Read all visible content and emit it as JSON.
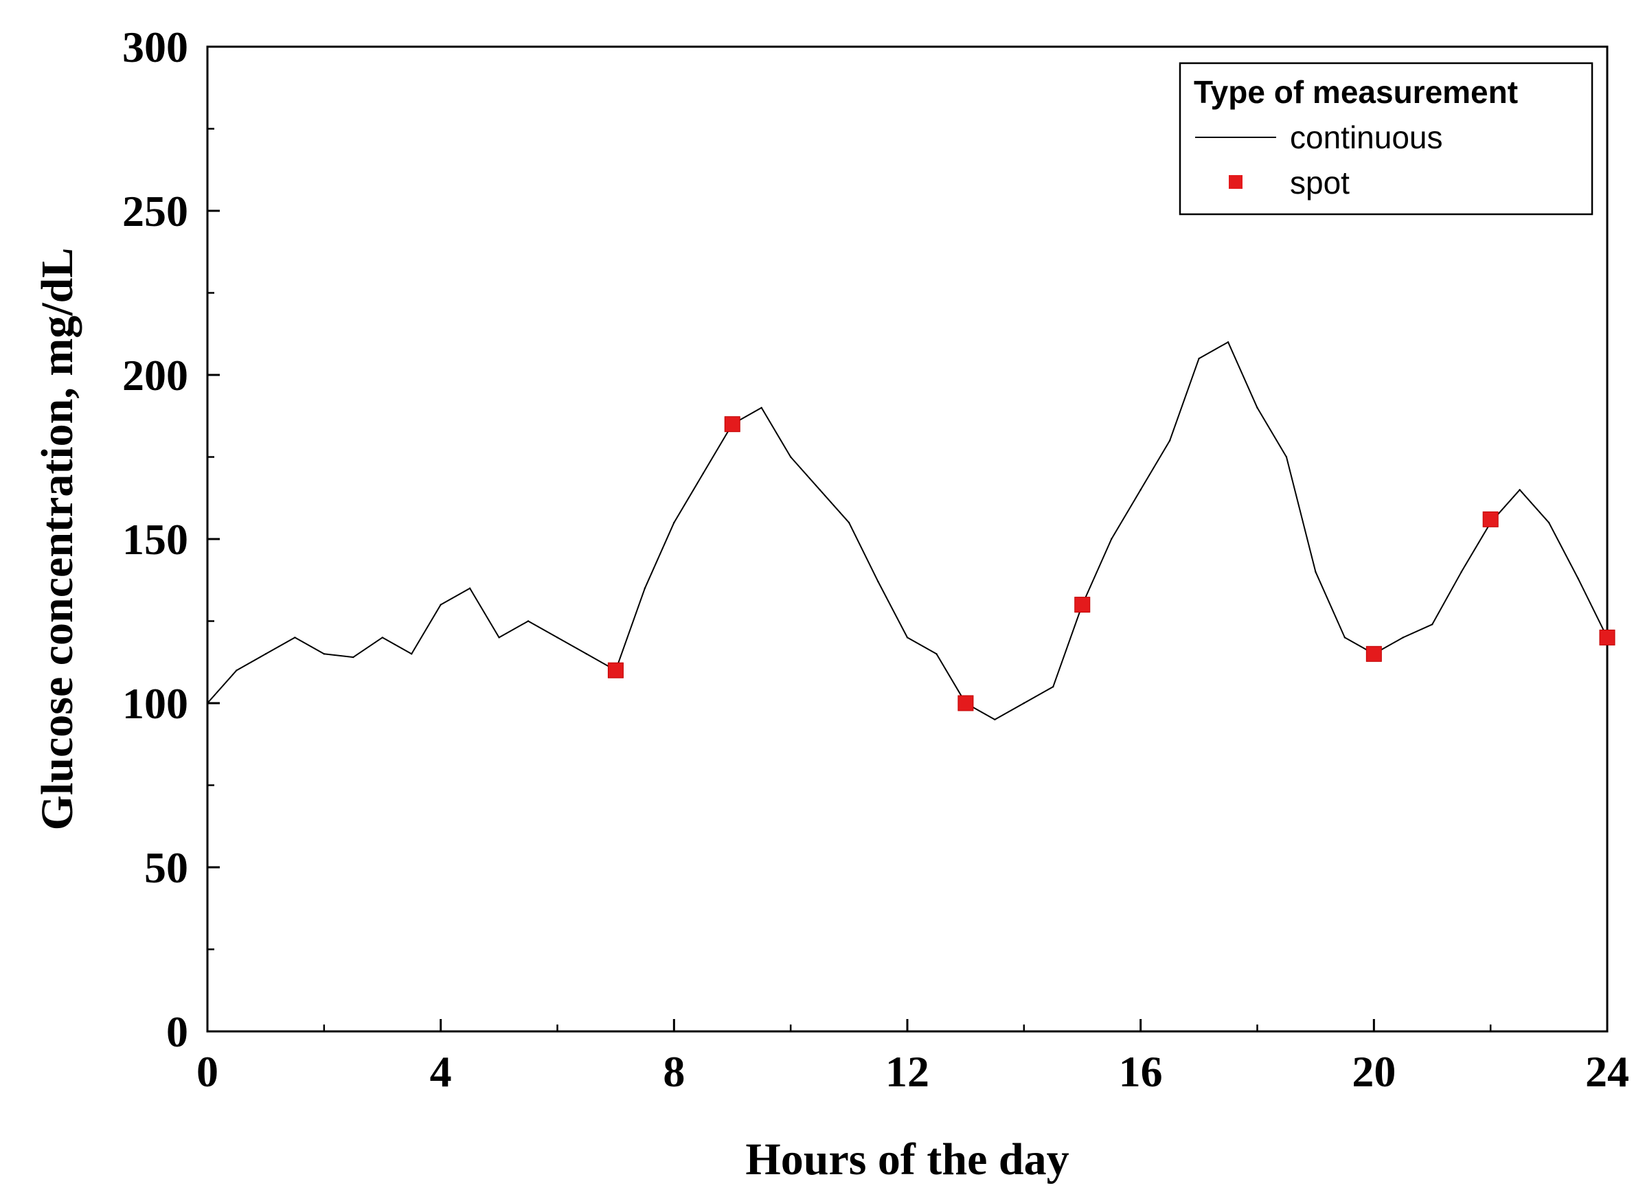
{
  "chart_data": {
    "type": "line",
    "xlabel": "Hours of the day",
    "ylabel": "Glucose concentration, mg/dL",
    "xlim": [
      0,
      24
    ],
    "ylim": [
      0,
      300
    ],
    "x_ticks": [
      0,
      4,
      8,
      12,
      16,
      20,
      24
    ],
    "x_tick_labels": [
      "0",
      "4",
      "8",
      "12",
      "16",
      "20",
      "24"
    ],
    "x_minor_ticks": [
      2,
      6,
      10,
      14,
      18,
      22
    ],
    "y_ticks": [
      0,
      50,
      100,
      150,
      200,
      250,
      300
    ],
    "y_tick_labels": [
      "0",
      "50",
      "100",
      "150",
      "200",
      "250",
      "300"
    ],
    "y_minor_ticks": [
      25,
      75,
      125,
      175,
      225,
      275
    ],
    "grid": false,
    "legend": {
      "title": "Type of measurement",
      "position": "top-right",
      "entries": [
        {
          "label": "continuous",
          "symbol": "line"
        },
        {
          "label": "spot",
          "symbol": "square"
        }
      ]
    },
    "series": [
      {
        "name": "continuous",
        "kind": "line",
        "color": "#000000",
        "x": [
          0,
          0.5,
          1,
          1.5,
          2,
          2.5,
          3,
          3.5,
          4,
          4.5,
          5,
          5.5,
          6,
          6.5,
          7,
          7.5,
          8,
          8.5,
          9,
          9.5,
          10,
          10.5,
          11,
          11.5,
          12,
          12.5,
          13,
          13.5,
          14,
          14.5,
          15,
          15.5,
          16,
          16.5,
          17,
          17.5,
          18,
          18.5,
          19,
          19.5,
          20,
          20.5,
          21,
          21.5,
          22,
          22.5,
          23,
          23.5,
          24
        ],
        "y": [
          100,
          110,
          115,
          120,
          115,
          114,
          120,
          115,
          130,
          135,
          120,
          125,
          120,
          115,
          110,
          135,
          155,
          170,
          185,
          190,
          175,
          165,
          155,
          137,
          120,
          115,
          100,
          95,
          100,
          105,
          130,
          150,
          165,
          180,
          205,
          210,
          190,
          175,
          140,
          120,
          115,
          120,
          124,
          140,
          155,
          165,
          155,
          138,
          120
        ]
      },
      {
        "name": "spot",
        "kind": "scatter",
        "color": "#e41a1c",
        "x": [
          7,
          9,
          13,
          15,
          20,
          22,
          24
        ],
        "y": [
          110,
          185,
          100,
          130,
          115,
          156,
          120
        ]
      }
    ]
  }
}
